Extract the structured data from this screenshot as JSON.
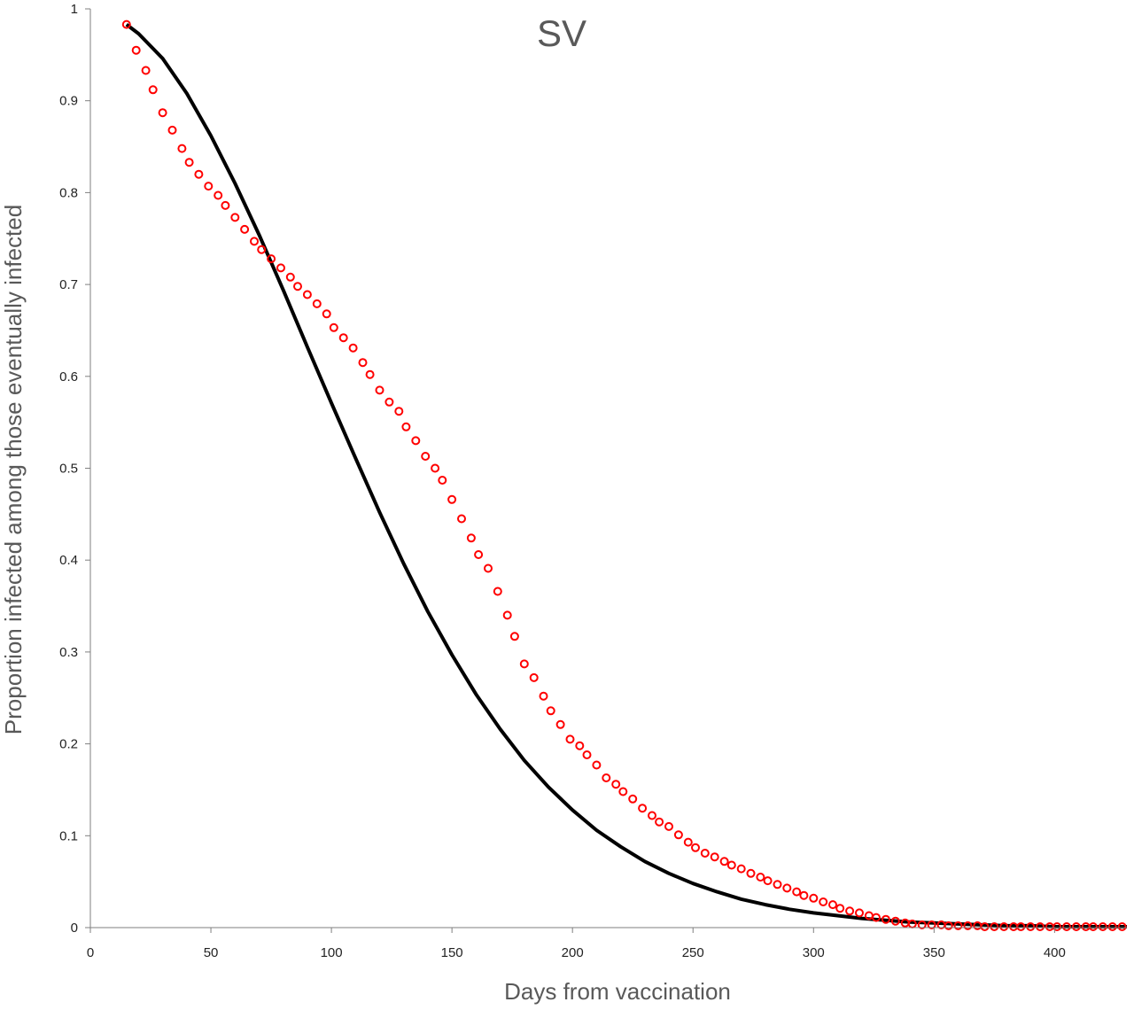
{
  "chart_data": {
    "type": "scatter",
    "title": "SV",
    "xlabel": "Days from vaccination",
    "ylabel": "Proportion infected among those eventually infected",
    "xlim": [
      0,
      430
    ],
    "ylim": [
      0,
      1
    ],
    "xticks": [
      0,
      50,
      100,
      150,
      200,
      250,
      300,
      350,
      400
    ],
    "yticks": [
      0,
      0.1,
      0.2,
      0.3,
      0.4,
      0.5,
      0.6,
      0.7,
      0.8,
      0.9,
      1
    ],
    "ytick_labels": [
      "0",
      "0.1",
      "0.2",
      "0.3",
      "0.4",
      "0.5",
      "0.6",
      "0.7",
      "0.8",
      "0.9",
      "1"
    ],
    "grid": false,
    "legend": "none",
    "colors": {
      "points": "#ff0000",
      "curve": "#000000"
    },
    "series": [
      {
        "style": "markers",
        "x": [
          15,
          19,
          23,
          26,
          30,
          34,
          38,
          41,
          45,
          49,
          53,
          56,
          60,
          64,
          68,
          71,
          75,
          79,
          83,
          86,
          90,
          94,
          98,
          101,
          105,
          109,
          113,
          116,
          120,
          124,
          128,
          131,
          135,
          139,
          143,
          146,
          150,
          154,
          158,
          161,
          165,
          169,
          173,
          176,
          180,
          184,
          188,
          191,
          195,
          199,
          203,
          206,
          210,
          214,
          218,
          221,
          225,
          229,
          233,
          236,
          240,
          244,
          248,
          251,
          255,
          259,
          263,
          266,
          270,
          274,
          278,
          281,
          285,
          289,
          293,
          296,
          300,
          304,
          308,
          311,
          315,
          319,
          323,
          326,
          330,
          334,
          338,
          341,
          345,
          349,
          353,
          356,
          360,
          364,
          368,
          371,
          375,
          379,
          383,
          386,
          390,
          394,
          398,
          401,
          405,
          409,
          413,
          416,
          420,
          424,
          428
        ],
        "y": [
          0.983,
          0.955,
          0.933,
          0.912,
          0.887,
          0.868,
          0.848,
          0.833,
          0.82,
          0.807,
          0.797,
          0.786,
          0.773,
          0.76,
          0.747,
          0.738,
          0.728,
          0.718,
          0.708,
          0.698,
          0.689,
          0.679,
          0.668,
          0.653,
          0.642,
          0.631,
          0.615,
          0.602,
          0.585,
          0.572,
          0.562,
          0.545,
          0.53,
          0.513,
          0.5,
          0.487,
          0.466,
          0.445,
          0.424,
          0.406,
          0.391,
          0.366,
          0.34,
          0.317,
          0.287,
          0.272,
          0.252,
          0.236,
          0.221,
          0.205,
          0.198,
          0.188,
          0.177,
          0.163,
          0.156,
          0.148,
          0.14,
          0.13,
          0.122,
          0.115,
          0.11,
          0.101,
          0.093,
          0.087,
          0.081,
          0.077,
          0.072,
          0.068,
          0.064,
          0.059,
          0.055,
          0.051,
          0.047,
          0.043,
          0.039,
          0.035,
          0.032,
          0.028,
          0.025,
          0.021,
          0.018,
          0.016,
          0.013,
          0.011,
          0.009,
          0.007,
          0.005,
          0.004,
          0.003,
          0.003,
          0.003,
          0.002,
          0.002,
          0.002,
          0.002,
          0.001,
          0.001,
          0.001,
          0.001,
          0.001,
          0.001,
          0.001,
          0.001,
          0.001,
          0.001,
          0.001,
          0.001,
          0.001,
          0.001,
          0.001,
          0.001
        ]
      },
      {
        "style": "line",
        "x": [
          15,
          20,
          30,
          40,
          50,
          60,
          70,
          80,
          90,
          100,
          110,
          120,
          130,
          140,
          150,
          160,
          170,
          180,
          190,
          200,
          210,
          220,
          230,
          240,
          250,
          260,
          270,
          280,
          290,
          300,
          310,
          320,
          330,
          340,
          350,
          360,
          370,
          380,
          390,
          400,
          410,
          420,
          430
        ],
        "y": [
          0.983,
          0.973,
          0.946,
          0.908,
          0.862,
          0.81,
          0.754,
          0.694,
          0.632,
          0.571,
          0.511,
          0.452,
          0.396,
          0.344,
          0.297,
          0.254,
          0.216,
          0.182,
          0.153,
          0.128,
          0.106,
          0.088,
          0.072,
          0.059,
          0.048,
          0.039,
          0.031,
          0.025,
          0.02,
          0.016,
          0.013,
          0.01,
          0.008,
          0.006,
          0.005,
          0.004,
          0.003,
          0.002,
          0.002,
          0.001,
          0.001,
          0.001,
          0.001
        ]
      }
    ]
  }
}
